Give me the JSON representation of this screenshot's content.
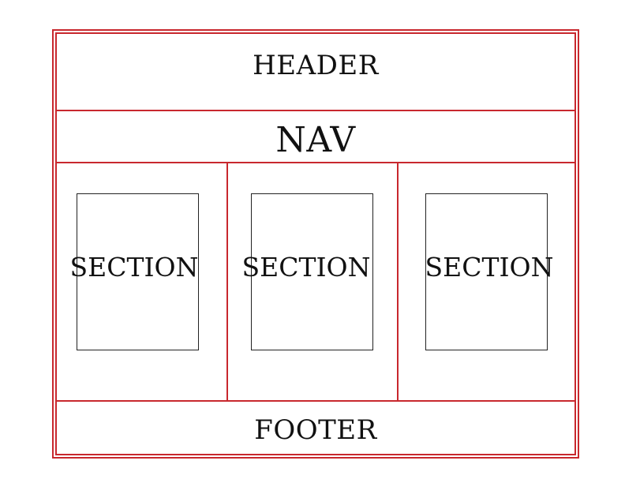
{
  "layout_labels": {
    "header": "HEADER",
    "nav": "NAV",
    "sections": [
      {
        "label": "SECTION"
      },
      {
        "label": "SECTION"
      },
      {
        "label": "SECTION"
      }
    ],
    "footer": "FOOTER"
  },
  "colors": {
    "frame_line": "#c8282e",
    "section_border": "#222222",
    "text": "#111111",
    "background": "#ffffff"
  }
}
